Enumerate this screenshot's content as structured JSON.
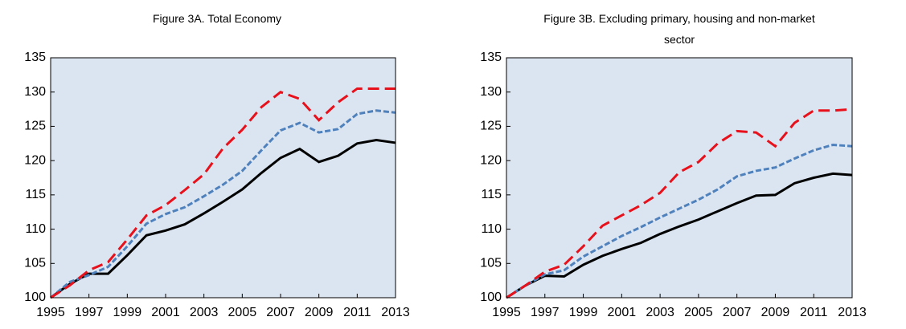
{
  "chart_data": [
    {
      "type": "line",
      "title": "Figure 3A. Total Economy",
      "x": [
        1995,
        1996,
        1997,
        1998,
        1999,
        2000,
        2001,
        2002,
        2003,
        2004,
        2005,
        2006,
        2007,
        2008,
        2009,
        2010,
        2011,
        2012,
        2013
      ],
      "xlim": [
        1995,
        2013
      ],
      "xticks": [
        1995,
        1997,
        1999,
        2001,
        2003,
        2005,
        2007,
        2009,
        2011,
        2013
      ],
      "ylim": [
        100,
        135
      ],
      "yticks": [
        100,
        105,
        110,
        115,
        120,
        125,
        130,
        135
      ],
      "grid": false,
      "series": [
        {
          "color": "#000000",
          "style": "solid",
          "values": [
            100,
            102,
            103.5,
            103.5,
            106.2,
            109.1,
            109.8,
            110.7,
            112.3,
            114,
            115.8,
            118.2,
            120.4,
            121.7,
            119.8,
            120.7,
            122.5,
            123,
            122.6
          ]
        },
        {
          "color": "#4f81bd",
          "style": "dashed",
          "values": [
            100,
            102.3,
            103.3,
            104.5,
            107.5,
            110.8,
            112.2,
            113.2,
            114.8,
            116.5,
            118.5,
            121.5,
            124.4,
            125.5,
            124.1,
            124.6,
            126.8,
            127.3,
            127
          ]
        },
        {
          "color": "#e8111b",
          "style": "longdash",
          "values": [
            100,
            101.8,
            104,
            105.2,
            108.5,
            112,
            113.5,
            115.7,
            118,
            121.8,
            124.5,
            127.8,
            130,
            129,
            125.9,
            128.5,
            130.5,
            130.5,
            130.5
          ]
        }
      ]
    },
    {
      "type": "line",
      "title": "Figure 3B. Excluding primary, housing and non-market sector",
      "x": [
        1995,
        1996,
        1997,
        1998,
        1999,
        2000,
        2001,
        2002,
        2003,
        2004,
        2005,
        2006,
        2007,
        2008,
        2009,
        2010,
        2011,
        2012,
        2013
      ],
      "xlim": [
        1995,
        2013
      ],
      "xticks": [
        1995,
        1997,
        1999,
        2001,
        2003,
        2005,
        2007,
        2009,
        2011,
        2013
      ],
      "ylim": [
        100,
        135
      ],
      "yticks": [
        100,
        105,
        110,
        115,
        120,
        125,
        130,
        135
      ],
      "grid": false,
      "series": [
        {
          "color": "#000000",
          "style": "solid",
          "values": [
            100,
            101.8,
            103.2,
            103.1,
            104.8,
            106.1,
            107.1,
            108,
            109.3,
            110.4,
            111.4,
            112.6,
            113.8,
            114.9,
            115,
            116.7,
            117.5,
            118.1,
            117.9
          ]
        },
        {
          "color": "#4f81bd",
          "style": "dashed",
          "values": [
            100,
            101.8,
            103.4,
            104,
            106,
            107.5,
            109,
            110.3,
            111.7,
            113,
            114.3,
            115.8,
            117.7,
            118.5,
            119,
            120.3,
            121.5,
            122.3,
            122.1
          ]
        },
        {
          "color": "#e8111b",
          "style": "longdash",
          "values": [
            100,
            101.8,
            103.8,
            104.8,
            107.5,
            110.5,
            112,
            113.5,
            115.3,
            118.3,
            119.8,
            122.5,
            124.3,
            124.1,
            122.1,
            125.5,
            127.3,
            127.3,
            127.5
          ]
        }
      ]
    }
  ]
}
